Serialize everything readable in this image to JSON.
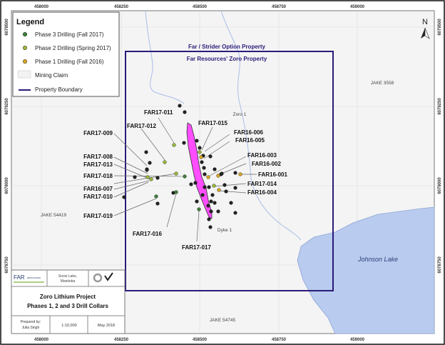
{
  "map": {
    "x_ticks": [
      "458000",
      "458250",
      "458500",
      "458750",
      "459000"
    ],
    "y_ticks": [
      "6079500",
      "6079250",
      "6079000",
      "6078750"
    ],
    "north_label": "N",
    "boundary_title_1": "Far / Strider Option Property",
    "boundary_title_2": "Far Resources' Zoro Property",
    "claims": [
      "Zoro 1",
      "Dyke 1",
      "JAKE 3558",
      "JAKE 54419",
      "JAKE 54745"
    ],
    "lake": "Johnson Lake",
    "drill_labels": [
      "FAR17-011",
      "FAR17-012",
      "FAR17-009",
      "FAR17-008",
      "FAR17-013",
      "FAR17-018",
      "FAR16-007",
      "FAR17-010",
      "FAR17-019",
      "FAR17-016",
      "FAR17-017",
      "FAR17-015",
      "FAR16-006",
      "FAR16-005",
      "FAR16-003",
      "FAR16-002",
      "FAR16-001",
      "FAR17-014",
      "FAR16-004"
    ],
    "colors": {
      "boundary": "#2b1a7a",
      "dyke": "#ff4dff",
      "lake": "#b9cbee",
      "phase3": "#3f7f3a",
      "phase2": "#9ab83a",
      "phase1": "#d9a521",
      "hole": "#222222"
    }
  },
  "legend": {
    "title": "Legend",
    "items": [
      "Phase 3 Drilling (Fall 2017)",
      "Phase 2 Drilling (Spring 2017)",
      "Phase 1 Drilling (Fall 2016)",
      "Mining Claim",
      "Property Boundary"
    ]
  },
  "title_block": {
    "company": "FAR",
    "company_sub": "RESOURCES",
    "location_1": "Snow Lake,",
    "location_2": "Manitoba",
    "title_1": "Zoro Lithium Project",
    "title_2": "Phases 1, 2 and 3 Drill Collars",
    "prepared_by_1": "Prepared by:",
    "prepared_by_2": "Julia Singh",
    "scale": "1:10,000",
    "date": "May 2018"
  }
}
